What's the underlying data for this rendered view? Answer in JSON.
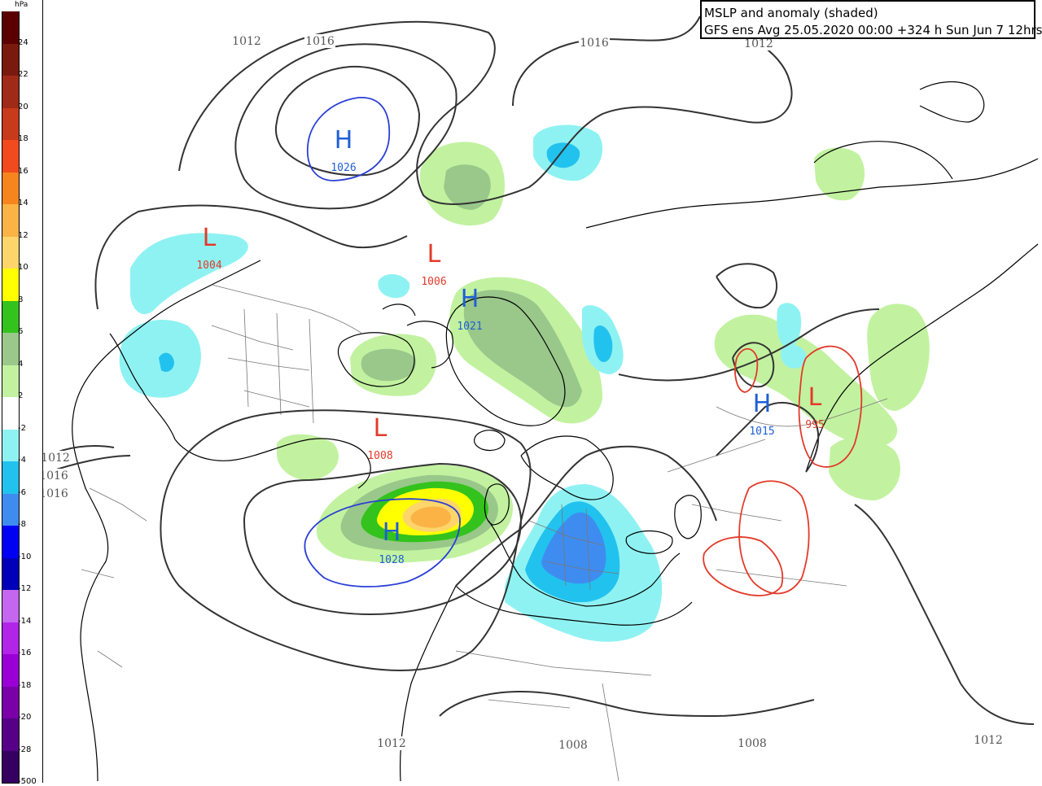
{
  "title": {
    "line1": "MSLP and anomaly (shaded)",
    "line2": "GFS ens Avg 25.05.2020 00:00 +324 h Sun Jun 7 12hrs"
  },
  "legend": {
    "unit": "hPa",
    "entries": [
      {
        "label": "24",
        "color": "#5a0000"
      },
      {
        "label": "22",
        "color": "#7a1a0e"
      },
      {
        "label": "20",
        "color": "#a02a18"
      },
      {
        "label": "18",
        "color": "#c83a1c"
      },
      {
        "label": "16",
        "color": "#f04a1e"
      },
      {
        "label": "14",
        "color": "#f7851e"
      },
      {
        "label": "12",
        "color": "#fbb345"
      },
      {
        "label": "10",
        "color": "#fdd56b"
      },
      {
        "label": "8",
        "color": "#ffff00"
      },
      {
        "label": "6",
        "color": "#33c31c"
      },
      {
        "label": "4",
        "color": "#99c88a"
      },
      {
        "label": "2",
        "color": "#c2f2a0"
      },
      {
        "label": "-2",
        "color": "#ffffff"
      },
      {
        "label": "-4",
        "color": "#8ff2f2"
      },
      {
        "label": "-6",
        "color": "#22c2ee"
      },
      {
        "label": "-8",
        "color": "#3f8cf0"
      },
      {
        "label": "-10",
        "color": "#0000f2"
      },
      {
        "label": "-12",
        "color": "#0000b8"
      },
      {
        "label": "-14",
        "color": "#c466ee"
      },
      {
        "label": "-16",
        "color": "#b225e8"
      },
      {
        "label": "-18",
        "color": "#9a00d6"
      },
      {
        "label": "-20",
        "color": "#7a00a8"
      },
      {
        "label": "-28",
        "color": "#560088"
      },
      {
        "label": "-500",
        "color": "#360060"
      }
    ]
  },
  "pressure_centers": [
    {
      "type": "H",
      "value": "1026",
      "color": "#1f5fd6"
    },
    {
      "type": "L",
      "value": "1004",
      "color": "#e23a2a"
    },
    {
      "type": "L",
      "value": "1006",
      "color": "#e23a2a"
    },
    {
      "type": "H",
      "value": "1021",
      "color": "#1f5fd6"
    },
    {
      "type": "L",
      "value": "1008",
      "color": "#e23a2a"
    },
    {
      "type": "H",
      "value": "1028",
      "color": "#1f5fd6"
    },
    {
      "type": "H",
      "value": "1015",
      "color": "#1f5fd6"
    },
    {
      "type": "L",
      "value": "995",
      "color": "#e23a2a"
    }
  ],
  "isobar_labels": [
    "1012",
    "1016",
    "1016",
    "1012",
    "1012",
    "1016",
    "1016",
    "1012",
    "1008",
    "1008",
    "1012"
  ],
  "colors": {
    "isobar": "#333333",
    "coast": "#000000",
    "border": "#777777",
    "high_contour": "#2a3fd6",
    "low_contour": "#e23a2a"
  }
}
